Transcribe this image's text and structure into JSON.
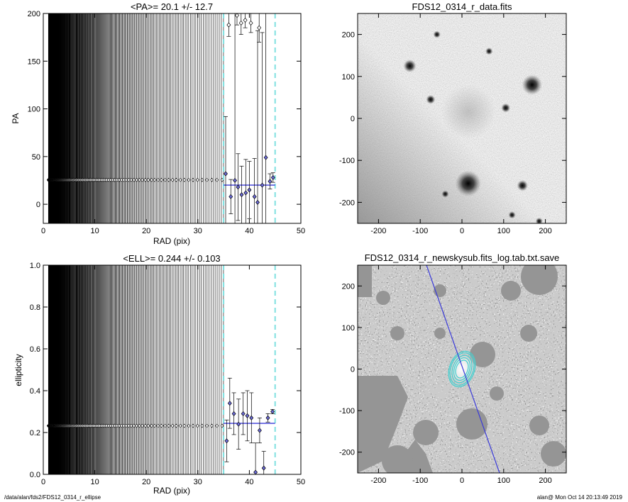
{
  "footer": {
    "path": "/data/alan/fds2/FDS12_0314_r_ellipse",
    "stamp": "alan@  Mon Oct 14 20:13:49 2019"
  },
  "colors": {
    "fit_line": "#3a3ad8",
    "marker_fill": "#6b6bd8",
    "dashed": "#7fe0e0",
    "contour": "#40d0d0",
    "mask_gray": "#959595"
  },
  "chart_data": [
    {
      "id": "pa-profile",
      "type": "scatter",
      "title": "<PA>=  20.1 +/-  12.7",
      "xlabel": "RAD (pix)",
      "ylabel": "PA",
      "xlim": [
        0,
        50
      ],
      "ylim": [
        -20,
        200
      ],
      "xticks": [
        0,
        10,
        20,
        30,
        40,
        50
      ],
      "yticks": [
        0,
        50,
        100,
        150,
        200
      ],
      "constant_value": 25.5,
      "constant_x_range": [
        1,
        35
      ],
      "fit_value": 20.1,
      "fit_x_range": [
        35,
        45
      ],
      "vlines_dashed": [
        35,
        45
      ],
      "points": [
        {
          "x": 35.4,
          "y": 32,
          "err": 60
        },
        {
          "x": 36.0,
          "y": 188,
          "err": 12
        },
        {
          "x": 36.4,
          "y": 8,
          "err": 18
        },
        {
          "x": 37.2,
          "y": 25,
          "err": 180
        },
        {
          "x": 37.6,
          "y": 198,
          "err": 10
        },
        {
          "x": 37.8,
          "y": 18,
          "err": 35
        },
        {
          "x": 38.4,
          "y": 190,
          "err": 12
        },
        {
          "x": 38.5,
          "y": 10,
          "err": 30
        },
        {
          "x": 39.2,
          "y": 193,
          "err": 8
        },
        {
          "x": 39.3,
          "y": 12,
          "err": 35
        },
        {
          "x": 40.0,
          "y": 15,
          "err": 30
        },
        {
          "x": 40.3,
          "y": 190,
          "err": 10
        },
        {
          "x": 41.0,
          "y": 8,
          "err": 40
        },
        {
          "x": 41.6,
          "y": 2,
          "err": 180
        },
        {
          "x": 41.9,
          "y": 185,
          "err": 15
        },
        {
          "x": 42.5,
          "y": 20,
          "err": 160
        },
        {
          "x": 43.2,
          "y": 49,
          "err": 200
        },
        {
          "x": 44.0,
          "y": 24,
          "err": 8
        },
        {
          "x": 44.6,
          "y": 28,
          "err": 5
        }
      ]
    },
    {
      "id": "ell-profile",
      "type": "scatter",
      "title": "<ELL>= 0.244 +/-  0.103",
      "xlabel": "RAD (pix)",
      "ylabel": "ellipticity",
      "xlim": [
        0,
        50
      ],
      "ylim": [
        0.0,
        1.0
      ],
      "xticks": [
        0,
        10,
        20,
        30,
        40,
        50
      ],
      "yticks": [
        "0.0",
        "0.2",
        "0.4",
        "0.6",
        "0.8",
        "1.0"
      ],
      "constant_value": 0.232,
      "constant_x_range": [
        1,
        35
      ],
      "fit_value": 0.244,
      "fit_x_range": [
        35,
        45
      ],
      "vlines_dashed": [
        35,
        45
      ],
      "points": [
        {
          "x": 35.6,
          "y": 0.16,
          "err": 0.1
        },
        {
          "x": 36.2,
          "y": 0.34,
          "err": 0.12
        },
        {
          "x": 37.0,
          "y": 0.29,
          "err": 0.1
        },
        {
          "x": 37.9,
          "y": 0.24,
          "err": 0.12
        },
        {
          "x": 38.8,
          "y": 0.29,
          "err": 0.1
        },
        {
          "x": 39.6,
          "y": 0.28,
          "err": 0.12
        },
        {
          "x": 40.4,
          "y": 0.27,
          "err": 0.12
        },
        {
          "x": 41.2,
          "y": 0.01,
          "err": 0.14
        },
        {
          "x": 42.0,
          "y": 0.21,
          "err": 0.06
        },
        {
          "x": 42.8,
          "y": 0.03,
          "err": 0.08
        },
        {
          "x": 43.6,
          "y": 0.27,
          "err": 0.02
        },
        {
          "x": 44.5,
          "y": 0.3,
          "err": 0.01
        }
      ]
    },
    {
      "id": "data-image",
      "type": "heatmap",
      "title": "FDS12_0314_r_data.fits",
      "xlim": [
        -250,
        250
      ],
      "ylim": [
        -250,
        250
      ],
      "xticks": [
        -200,
        -100,
        0,
        100,
        200
      ],
      "yticks": [
        -200,
        -100,
        0,
        100,
        200
      ],
      "sources": [
        {
          "x": 15,
          "y": -155,
          "r": 14
        },
        {
          "x": 168,
          "y": 80,
          "r": 11
        },
        {
          "x": -125,
          "y": 125,
          "r": 7
        },
        {
          "x": 145,
          "y": -160,
          "r": 6
        },
        {
          "x": -75,
          "y": 45,
          "r": 5
        },
        {
          "x": 105,
          "y": 25,
          "r": 5
        },
        {
          "x": -40,
          "y": -180,
          "r": 4
        },
        {
          "x": 185,
          "y": -245,
          "r": 4
        },
        {
          "x": 120,
          "y": -230,
          "r": 4
        },
        {
          "x": -60,
          "y": 200,
          "r": 4
        },
        {
          "x": 65,
          "y": 160,
          "r": 4
        }
      ]
    },
    {
      "id": "model-image",
      "type": "heatmap",
      "title": "FDS12_0314_r_newskysub.fits_log.tab.txt.save",
      "xlim": [
        -250,
        250
      ],
      "ylim": [
        -250,
        250
      ],
      "xticks": [
        -200,
        -100,
        0,
        100,
        200
      ],
      "yticks": [
        -200,
        -100,
        0,
        100,
        200
      ],
      "major_axis_line": [
        [
          -85,
          250
        ],
        [
          90,
          -250
        ]
      ],
      "contour_center": [
        0,
        0
      ],
      "contour_semi_axes": [
        [
          22,
          34
        ],
        [
          27,
          40
        ],
        [
          30,
          44
        ],
        [
          18,
          28
        ],
        [
          14,
          22
        ]
      ],
      "contour_rotation": 20
    }
  ]
}
